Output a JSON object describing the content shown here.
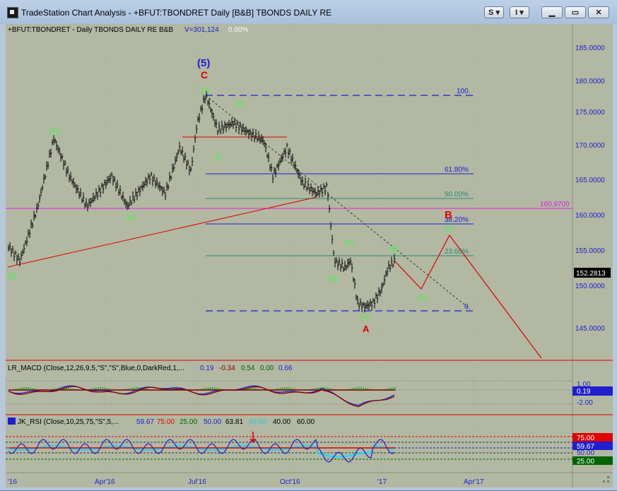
{
  "window": {
    "title": "TradeStation Chart Analysis - +BFUT:TBONDRET Daily [B&B] TBONDS DAILY RE",
    "style_button": "S",
    "indicator_button": "I"
  },
  "main_panel": {
    "symbol": "+BFUT:TBONDRET - Daily  TBONDS DAILY RE  B&B",
    "volume": "V=301,124",
    "change": "0.00%",
    "current_price": "152.2813",
    "price_axis": [
      "185.0000",
      "180.0000",
      "175.0000",
      "170.0000",
      "165.0000",
      "160.0000",
      "155.0000",
      "150.0000",
      "145.0000"
    ],
    "magenta_level": "160.9700",
    "fib_labels": [
      "100.",
      "61.80%",
      "50.00%",
      "38.20%",
      "23.60%",
      "0."
    ],
    "wave_labels": {
      "w5": "(5)",
      "wC": "C",
      "wv_top": "[v]",
      "wii_top": "[ii]",
      "wi": "[i]",
      "wiii_left": "[iii]",
      "wiv_left": "[iv]",
      "wii_left": "[ii]",
      "wiv_low": "[iv]",
      "wiii_low": "[iii]",
      "wv_low": "[v]",
      "wA": "A",
      "wa": "[a]",
      "wb": "[b]",
      "wB": "B",
      "wc": "[c]"
    }
  },
  "macd_panel": {
    "name": "LR_MACD (Close,12,26,9,5,\"S\",\"S\",Blue,0,DarkRed,1,...",
    "values": [
      "0.19",
      "-0.34",
      "0.54",
      "0.00",
      "0.66"
    ],
    "axis": [
      "1.00",
      "0.19",
      "-2.00"
    ]
  },
  "rsi_panel": {
    "name": "JK_RSI (Close,10,25,75,\"S\",5,...",
    "values": [
      "59.67",
      "75.00",
      "25.00",
      "50.00",
      "63.81",
      "46.68",
      "40.00",
      "60.00"
    ],
    "axis": [
      "75.00",
      "59.67",
      "50.00",
      "25.00"
    ]
  },
  "time_axis": [
    "'16",
    "Apr'16",
    "Jul'16",
    "Oct'16",
    "'17",
    "Apr'17"
  ],
  "colors": {
    "chart_bg": "#b2b8a2",
    "fib_blue": "#1f1fcf",
    "fib_teal": "#2a8a76",
    "wave_green": "#4ef04e",
    "wave_red": "#e00000",
    "magenta": "#e020e0"
  }
}
